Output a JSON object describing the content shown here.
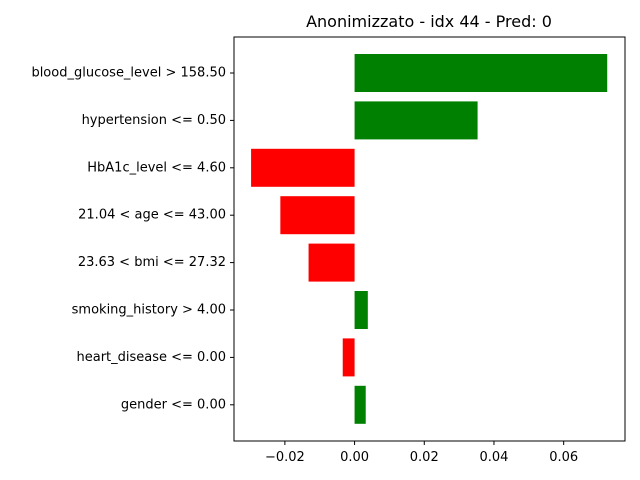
{
  "chart_data": {
    "type": "bar",
    "orientation": "horizontal",
    "title": "Anonimizzato - idx 44 - Pred: 0",
    "xlabel": "",
    "ylabel": "",
    "xlim": [
      -0.0346,
      0.0776
    ],
    "xticks": [
      -0.02,
      0.0,
      0.02,
      0.04,
      0.06
    ],
    "xtick_labels": [
      "−0.02",
      "0.00",
      "0.02",
      "0.04",
      "0.06"
    ],
    "grid": false,
    "colors": {
      "positive": "#008000",
      "negative": "#ff0000"
    },
    "categories": [
      "blood_glucose_level > 158.50",
      "hypertension <= 0.50",
      "HbA1c_level <= 4.60",
      "21.04 < age <= 43.00",
      "23.63 < bmi <= 27.32",
      "smoking_history > 4.00",
      "heart_disease <= 0.00",
      "gender <= 0.00"
    ],
    "values": [
      0.0725,
      0.0353,
      -0.0297,
      -0.0213,
      -0.0132,
      0.0038,
      -0.0034,
      0.0032
    ]
  }
}
